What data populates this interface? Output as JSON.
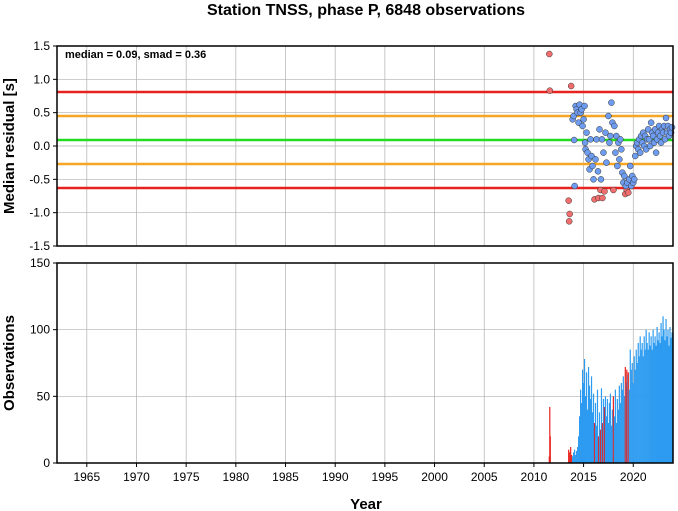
{
  "title": "Station TNSS, phase P, 6848 observations",
  "xlabel": "Year",
  "chart_data": [
    {
      "type": "scatter",
      "ylabel": "Median residual [s]",
      "xlim": [
        1962,
        2024
      ],
      "ylim": [
        -1.5,
        1.5
      ],
      "yticks": [
        1.5,
        1.0,
        0.5,
        0.0,
        -0.5,
        -1.0,
        -1.5
      ],
      "ytick_labels": [
        "1.5",
        "1.0",
        "0.5",
        "0.0",
        "-0.5",
        "-1.0",
        "-1.5"
      ],
      "annotation": "median = 0.09, smad = 0.36",
      "median": 0.09,
      "reference_lines": [
        {
          "value": 0.81,
          "color": "#e8221e"
        },
        {
          "value": 0.45,
          "color": "#f5a623"
        },
        {
          "value": 0.09,
          "color": "#22dd22"
        },
        {
          "value": -0.27,
          "color": "#f5a623"
        },
        {
          "value": -0.63,
          "color": "#e8221e"
        }
      ],
      "series": [
        {
          "color": "#f26d6d",
          "points": [
            [
              2011.55,
              1.38
            ],
            [
              2011.6,
              0.83
            ],
            [
              2013.5,
              -0.82
            ],
            [
              2013.55,
              -1.13
            ],
            [
              2013.6,
              -1.02
            ],
            [
              2013.75,
              0.9
            ],
            [
              2016.1,
              -0.8
            ],
            [
              2016.5,
              -0.78
            ],
            [
              2016.7,
              -0.66
            ],
            [
              2016.9,
              -0.78
            ],
            [
              2017.1,
              -0.68
            ],
            [
              2018.0,
              -0.66
            ],
            [
              2019.2,
              -0.72
            ],
            [
              2019.35,
              -0.66
            ],
            [
              2019.5,
              -0.7
            ]
          ]
        },
        {
          "color": "#6e9cf0",
          "points": [
            [
              2013.9,
              0.4
            ],
            [
              2014.0,
              0.45
            ],
            [
              2014.05,
              0.09
            ],
            [
              2014.1,
              -0.6
            ],
            [
              2014.2,
              0.6
            ],
            [
              2014.3,
              0.55
            ],
            [
              2014.4,
              0.5
            ],
            [
              2014.5,
              0.35
            ],
            [
              2014.6,
              0.62
            ],
            [
              2014.7,
              0.5
            ],
            [
              2014.8,
              0.55
            ],
            [
              2014.9,
              0.3
            ],
            [
              2015.0,
              0.4
            ],
            [
              2015.1,
              0.6
            ],
            [
              2015.15,
              0.05
            ],
            [
              2015.2,
              -0.05
            ],
            [
              2015.3,
              0.2
            ],
            [
              2015.4,
              -0.1
            ],
            [
              2015.5,
              -0.2
            ],
            [
              2015.6,
              -0.35
            ],
            [
              2015.7,
              0.1
            ],
            [
              2015.8,
              -0.15
            ],
            [
              2015.9,
              -0.3
            ],
            [
              2016.0,
              -0.5
            ],
            [
              2016.2,
              -0.2
            ],
            [
              2016.3,
              0.1
            ],
            [
              2016.45,
              -0.38
            ],
            [
              2016.6,
              0.25
            ],
            [
              2016.75,
              -0.5
            ],
            [
              2016.85,
              0.1
            ],
            [
              2017.0,
              -0.1
            ],
            [
              2017.2,
              0.2
            ],
            [
              2017.3,
              -0.25
            ],
            [
              2017.5,
              0.45
            ],
            [
              2017.6,
              0.05
            ],
            [
              2017.7,
              0.15
            ],
            [
              2017.8,
              0.65
            ],
            [
              2017.9,
              0.35
            ],
            [
              2018.1,
              0.3
            ],
            [
              2018.2,
              -0.1
            ],
            [
              2018.3,
              0.15
            ],
            [
              2018.4,
              -0.3
            ],
            [
              2018.5,
              0.05
            ],
            [
              2018.6,
              -0.2
            ],
            [
              2018.7,
              0.1
            ],
            [
              2018.8,
              -0.05
            ],
            [
              2018.9,
              -0.4
            ],
            [
              2019.0,
              -0.55
            ],
            [
              2019.1,
              -0.45
            ],
            [
              2019.25,
              -0.6
            ],
            [
              2019.4,
              -0.55
            ],
            [
              2019.6,
              -0.5
            ],
            [
              2019.7,
              -0.3
            ],
            [
              2019.8,
              -0.6
            ],
            [
              2019.9,
              -0.45
            ],
            [
              2020.0,
              -0.55
            ],
            [
              2020.1,
              -0.5
            ],
            [
              2020.2,
              -0.15
            ],
            [
              2020.3,
              0.0
            ],
            [
              2020.4,
              0.05
            ],
            [
              2020.5,
              -0.05
            ],
            [
              2020.6,
              0.1
            ],
            [
              2020.7,
              -0.1
            ],
            [
              2020.8,
              0.15
            ],
            [
              2020.9,
              0.05
            ],
            [
              2021.0,
              0.2
            ],
            [
              2021.1,
              0.0
            ],
            [
              2021.2,
              0.15
            ],
            [
              2021.3,
              -0.05
            ],
            [
              2021.4,
              0.1
            ],
            [
              2021.5,
              0.25
            ],
            [
              2021.6,
              0.1
            ],
            [
              2021.7,
              0.0
            ],
            [
              2021.8,
              0.35
            ],
            [
              2021.9,
              0.2
            ],
            [
              2022.0,
              0.15
            ],
            [
              2022.1,
              0.05
            ],
            [
              2022.2,
              0.25
            ],
            [
              2022.3,
              -0.1
            ],
            [
              2022.4,
              0.1
            ],
            [
              2022.5,
              0.2
            ],
            [
              2022.6,
              0.3
            ],
            [
              2022.7,
              0.15
            ],
            [
              2022.8,
              0.05
            ],
            [
              2022.9,
              0.25
            ],
            [
              2023.0,
              0.2
            ],
            [
              2023.1,
              0.3
            ],
            [
              2023.2,
              0.1
            ],
            [
              2023.3,
              0.42
            ],
            [
              2023.4,
              0.2
            ],
            [
              2023.5,
              0.3
            ],
            [
              2023.6,
              0.15
            ],
            [
              2023.7,
              0.25
            ],
            [
              2023.8,
              0.2
            ],
            [
              2023.9,
              0.28
            ]
          ]
        }
      ]
    },
    {
      "type": "bar",
      "ylabel": "Observations",
      "xlim": [
        1962,
        2024
      ],
      "ylim": [
        0,
        150
      ],
      "yticks": [
        150,
        100,
        50,
        0
      ],
      "ytick_labels": [
        "150",
        "100",
        "50",
        "0"
      ],
      "xticks": [
        1965,
        1970,
        1975,
        1980,
        1985,
        1990,
        1995,
        2000,
        2005,
        2010,
        2015,
        2020
      ],
      "xtick_labels": [
        "1965",
        "1970",
        "1975",
        "1980",
        "1985",
        "1990",
        "1995",
        "2000",
        "2005",
        "2010",
        "2015",
        "2020"
      ],
      "bar_colors": {
        "blue": "#2d9bf0",
        "red": "#e8221e"
      },
      "bars": [
        {
          "x": 2011.55,
          "v": 5,
          "c": "red"
        },
        {
          "x": 2011.6,
          "v": 42,
          "c": "red"
        },
        {
          "x": 2011.65,
          "v": 20,
          "c": "red"
        },
        {
          "x": 2013.5,
          "v": 10,
          "c": "red"
        },
        {
          "x": 2013.6,
          "v": 8,
          "c": "red"
        },
        {
          "x": 2013.7,
          "v": 12,
          "c": "red"
        },
        {
          "x": 2013.8,
          "v": 6,
          "c": "red"
        },
        {
          "x": 2013.9,
          "v": 5,
          "c": "blue"
        },
        {
          "x": 2014.0,
          "v": 8,
          "c": "blue"
        },
        {
          "x": 2014.1,
          "v": 10,
          "c": "blue"
        },
        {
          "x": 2014.2,
          "v": 6,
          "c": "blue"
        },
        {
          "x": 2014.3,
          "v": 9,
          "c": "blue"
        },
        {
          "x": 2014.4,
          "v": 12,
          "c": "blue"
        },
        {
          "x": 2014.5,
          "v": 20,
          "c": "blue"
        },
        {
          "x": 2014.6,
          "v": 35,
          "c": "blue"
        },
        {
          "x": 2014.7,
          "v": 55,
          "c": "blue"
        },
        {
          "x": 2014.8,
          "v": 45,
          "c": "blue"
        },
        {
          "x": 2014.9,
          "v": 70,
          "c": "blue"
        },
        {
          "x": 2015.0,
          "v": 60,
          "c": "blue"
        },
        {
          "x": 2015.1,
          "v": 78,
          "c": "blue"
        },
        {
          "x": 2015.2,
          "v": 50,
          "c": "blue"
        },
        {
          "x": 2015.3,
          "v": 68,
          "c": "blue"
        },
        {
          "x": 2015.4,
          "v": 40,
          "c": "blue"
        },
        {
          "x": 2015.5,
          "v": 72,
          "c": "blue"
        },
        {
          "x": 2015.6,
          "v": 58,
          "c": "blue"
        },
        {
          "x": 2015.7,
          "v": 48,
          "c": "blue"
        },
        {
          "x": 2015.8,
          "v": 65,
          "c": "blue"
        },
        {
          "x": 2015.9,
          "v": 38,
          "c": "blue"
        },
        {
          "x": 2016.0,
          "v": 52,
          "c": "blue"
        },
        {
          "x": 2016.1,
          "v": 30,
          "c": "red"
        },
        {
          "x": 2016.2,
          "v": 45,
          "c": "blue"
        },
        {
          "x": 2016.3,
          "v": 28,
          "c": "blue"
        },
        {
          "x": 2016.4,
          "v": 55,
          "c": "blue"
        },
        {
          "x": 2016.5,
          "v": 20,
          "c": "red"
        },
        {
          "x": 2016.6,
          "v": 38,
          "c": "blue"
        },
        {
          "x": 2016.7,
          "v": 25,
          "c": "red"
        },
        {
          "x": 2016.8,
          "v": 56,
          "c": "blue"
        },
        {
          "x": 2016.9,
          "v": 30,
          "c": "red"
        },
        {
          "x": 2017.0,
          "v": 48,
          "c": "blue"
        },
        {
          "x": 2017.1,
          "v": 42,
          "c": "red"
        },
        {
          "x": 2017.2,
          "v": 50,
          "c": "blue"
        },
        {
          "x": 2017.3,
          "v": 35,
          "c": "blue"
        },
        {
          "x": 2017.4,
          "v": 48,
          "c": "blue"
        },
        {
          "x": 2017.5,
          "v": 30,
          "c": "blue"
        },
        {
          "x": 2017.6,
          "v": 45,
          "c": "blue"
        },
        {
          "x": 2017.7,
          "v": 52,
          "c": "blue"
        },
        {
          "x": 2017.8,
          "v": 28,
          "c": "blue"
        },
        {
          "x": 2017.9,
          "v": 40,
          "c": "blue"
        },
        {
          "x": 2018.0,
          "v": 50,
          "c": "red"
        },
        {
          "x": 2018.1,
          "v": 35,
          "c": "blue"
        },
        {
          "x": 2018.2,
          "v": 55,
          "c": "blue"
        },
        {
          "x": 2018.3,
          "v": 30,
          "c": "blue"
        },
        {
          "x": 2018.4,
          "v": 48,
          "c": "blue"
        },
        {
          "x": 2018.5,
          "v": 40,
          "c": "blue"
        },
        {
          "x": 2018.6,
          "v": 58,
          "c": "blue"
        },
        {
          "x": 2018.7,
          "v": 45,
          "c": "blue"
        },
        {
          "x": 2018.8,
          "v": 60,
          "c": "blue"
        },
        {
          "x": 2018.9,
          "v": 55,
          "c": "blue"
        },
        {
          "x": 2019.0,
          "v": 65,
          "c": "blue"
        },
        {
          "x": 2019.1,
          "v": 50,
          "c": "blue"
        },
        {
          "x": 2019.2,
          "v": 72,
          "c": "red"
        },
        {
          "x": 2019.3,
          "v": 60,
          "c": "blue"
        },
        {
          "x": 2019.35,
          "v": 70,
          "c": "red"
        },
        {
          "x": 2019.45,
          "v": 66,
          "c": "blue"
        },
        {
          "x": 2019.5,
          "v": 68,
          "c": "red"
        },
        {
          "x": 2019.6,
          "v": 55,
          "c": "blue"
        },
        {
          "x": 2019.7,
          "v": 85,
          "c": "blue"
        },
        {
          "x": 2019.8,
          "v": 70,
          "c": "blue"
        },
        {
          "x": 2019.9,
          "v": 75,
          "c": "blue"
        },
        {
          "x": 2020.0,
          "v": 60,
          "c": "blue"
        },
        {
          "x": 2020.1,
          "v": 80,
          "c": "blue"
        },
        {
          "x": 2020.2,
          "v": 70,
          "c": "blue"
        },
        {
          "x": 2020.3,
          "v": 85,
          "c": "blue"
        },
        {
          "x": 2020.4,
          "v": 75,
          "c": "blue"
        },
        {
          "x": 2020.5,
          "v": 90,
          "c": "blue"
        },
        {
          "x": 2020.6,
          "v": 80,
          "c": "blue"
        },
        {
          "x": 2020.7,
          "v": 95,
          "c": "blue"
        },
        {
          "x": 2020.8,
          "v": 85,
          "c": "blue"
        },
        {
          "x": 2020.9,
          "v": 90,
          "c": "blue"
        },
        {
          "x": 2021.0,
          "v": 80,
          "c": "blue"
        },
        {
          "x": 2021.1,
          "v": 95,
          "c": "blue"
        },
        {
          "x": 2021.2,
          "v": 85,
          "c": "blue"
        },
        {
          "x": 2021.3,
          "v": 100,
          "c": "blue"
        },
        {
          "x": 2021.4,
          "v": 90,
          "c": "blue"
        },
        {
          "x": 2021.5,
          "v": 85,
          "c": "blue"
        },
        {
          "x": 2021.6,
          "v": 98,
          "c": "blue"
        },
        {
          "x": 2021.7,
          "v": 88,
          "c": "blue"
        },
        {
          "x": 2021.8,
          "v": 95,
          "c": "blue"
        },
        {
          "x": 2021.9,
          "v": 85,
          "c": "blue"
        },
        {
          "x": 2022.0,
          "v": 100,
          "c": "blue"
        },
        {
          "x": 2022.1,
          "v": 90,
          "c": "blue"
        },
        {
          "x": 2022.2,
          "v": 95,
          "c": "blue"
        },
        {
          "x": 2022.3,
          "v": 88,
          "c": "blue"
        },
        {
          "x": 2022.4,
          "v": 102,
          "c": "blue"
        },
        {
          "x": 2022.5,
          "v": 92,
          "c": "blue"
        },
        {
          "x": 2022.6,
          "v": 98,
          "c": "blue"
        },
        {
          "x": 2022.7,
          "v": 90,
          "c": "blue"
        },
        {
          "x": 2022.8,
          "v": 105,
          "c": "blue"
        },
        {
          "x": 2022.9,
          "v": 95,
          "c": "blue"
        },
        {
          "x": 2023.0,
          "v": 110,
          "c": "blue"
        },
        {
          "x": 2023.1,
          "v": 100,
          "c": "blue"
        },
        {
          "x": 2023.2,
          "v": 92,
          "c": "blue"
        },
        {
          "x": 2023.3,
          "v": 108,
          "c": "blue"
        },
        {
          "x": 2023.4,
          "v": 95,
          "c": "blue"
        },
        {
          "x": 2023.5,
          "v": 100,
          "c": "blue"
        },
        {
          "x": 2023.6,
          "v": 88,
          "c": "blue"
        },
        {
          "x": 2023.7,
          "v": 102,
          "c": "blue"
        },
        {
          "x": 2023.8,
          "v": 94,
          "c": "blue"
        },
        {
          "x": 2023.9,
          "v": 98,
          "c": "blue"
        }
      ]
    }
  ]
}
